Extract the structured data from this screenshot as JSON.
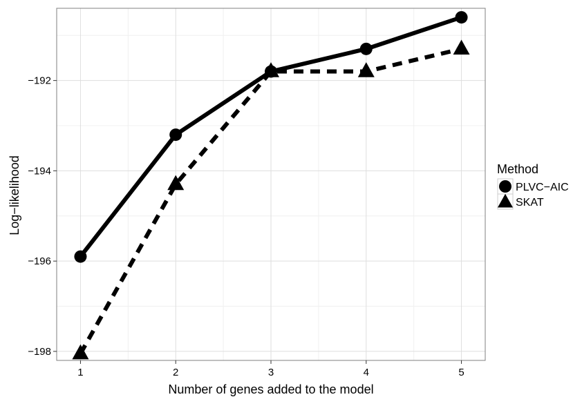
{
  "chart_data": {
    "type": "line",
    "title": "",
    "xlabel": "Number of genes added to the model",
    "ylabel": "Log−likelihood",
    "x": [
      1,
      2,
      3,
      4,
      5
    ],
    "xlim": [
      0.75,
      5.25
    ],
    "ylim": [
      -198.2,
      -190.4
    ],
    "xticks": [
      1,
      2,
      3,
      4,
      5
    ],
    "xtick_labels": [
      "1",
      "2",
      "3",
      "4",
      "5"
    ],
    "yticks": [
      -198,
      -196,
      -194,
      -192
    ],
    "ytick_labels": [
      "−198",
      "−196",
      "−194",
      "−192"
    ],
    "grid": true,
    "legend": {
      "title": "Method",
      "position": "right"
    },
    "series": [
      {
        "name": "PLVC−AIC",
        "values": [
          -195.9,
          -193.2,
          -191.8,
          -191.3,
          -190.6
        ],
        "line_style": "solid",
        "marker": "circle",
        "color": "#000000"
      },
      {
        "name": "SKAT",
        "values": [
          -198.05,
          -194.3,
          -191.8,
          -191.8,
          -191.3
        ],
        "line_style": "dashed",
        "marker": "triangle",
        "color": "#000000"
      }
    ]
  }
}
